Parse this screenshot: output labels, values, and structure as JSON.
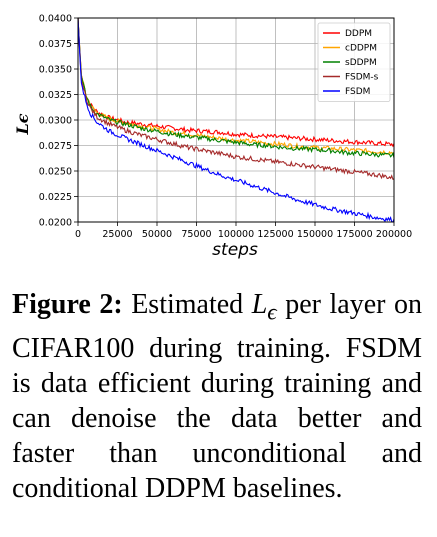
{
  "chart_data": {
    "type": "line",
    "xlabel": "steps",
    "ylabel": "Lϵ",
    "xlim": [
      0,
      200000
    ],
    "ylim": [
      0.02,
      0.04
    ],
    "xticks": [
      "0",
      "25000",
      "50000",
      "75000",
      "100000",
      "125000",
      "150000",
      "175000",
      "200000"
    ],
    "yticks": [
      "0.0200",
      "0.0225",
      "0.0250",
      "0.0275",
      "0.0300",
      "0.0325",
      "0.0350",
      "0.0375",
      "0.0400"
    ],
    "grid": true,
    "legend_position": "top-right",
    "series": [
      {
        "name": "DDPM",
        "color": "#ff0000",
        "x": [
          0,
          2000,
          5000,
          8000,
          12000,
          20000,
          30000,
          40000,
          50000,
          60000,
          70000,
          80000,
          90000,
          100000,
          110000,
          120000,
          130000,
          140000,
          150000,
          160000,
          170000,
          180000,
          190000,
          200000
        ],
        "y": [
          0.04,
          0.0345,
          0.0325,
          0.0315,
          0.0308,
          0.0302,
          0.0298,
          0.0296,
          0.0294,
          0.0292,
          0.029,
          0.0289,
          0.0288,
          0.0286,
          0.0285,
          0.0284,
          0.0283,
          0.0282,
          0.0281,
          0.028,
          0.0279,
          0.0278,
          0.0277,
          0.0276
        ]
      },
      {
        "name": "cDDPM",
        "color": "#ffa500",
        "x": [
          0,
          2000,
          5000,
          8000,
          12000,
          20000,
          30000,
          40000,
          50000,
          60000,
          70000,
          80000,
          90000,
          100000,
          110000,
          120000,
          130000,
          140000,
          150000,
          160000,
          170000,
          180000,
          190000,
          200000
        ],
        "y": [
          0.04,
          0.0345,
          0.0325,
          0.0314,
          0.0307,
          0.0301,
          0.0297,
          0.0294,
          0.0291,
          0.0288,
          0.0286,
          0.0284,
          0.0282,
          0.028,
          0.0279,
          0.0277,
          0.0276,
          0.0274,
          0.0273,
          0.0272,
          0.0271,
          0.027,
          0.0269,
          0.0268
        ]
      },
      {
        "name": "sDDPM",
        "color": "#008000",
        "x": [
          0,
          2000,
          5000,
          8000,
          12000,
          20000,
          30000,
          40000,
          50000,
          60000,
          70000,
          80000,
          90000,
          100000,
          110000,
          120000,
          130000,
          140000,
          150000,
          160000,
          170000,
          180000,
          190000,
          200000
        ],
        "y": [
          0.04,
          0.0344,
          0.0324,
          0.0313,
          0.0306,
          0.03,
          0.0296,
          0.0292,
          0.0289,
          0.0286,
          0.0284,
          0.0282,
          0.028,
          0.0278,
          0.0276,
          0.0275,
          0.0273,
          0.0272,
          0.0271,
          0.027,
          0.0268,
          0.0267,
          0.0266,
          0.0265
        ]
      },
      {
        "name": "FSDM-s",
        "color": "#a52a2a",
        "x": [
          0,
          2000,
          5000,
          8000,
          12000,
          20000,
          30000,
          40000,
          50000,
          60000,
          70000,
          80000,
          90000,
          100000,
          110000,
          120000,
          130000,
          140000,
          150000,
          160000,
          170000,
          180000,
          190000,
          200000
        ],
        "y": [
          0.04,
          0.034,
          0.0322,
          0.0311,
          0.0303,
          0.0296,
          0.029,
          0.0285,
          0.0281,
          0.0277,
          0.0273,
          0.027,
          0.0267,
          0.0264,
          0.0262,
          0.026,
          0.0258,
          0.0256,
          0.0254,
          0.0252,
          0.025,
          0.0248,
          0.0246,
          0.0243
        ]
      },
      {
        "name": "FSDM",
        "color": "#0000ff",
        "x": [
          0,
          2000,
          5000,
          8000,
          12000,
          20000,
          30000,
          40000,
          50000,
          60000,
          70000,
          80000,
          90000,
          100000,
          110000,
          120000,
          130000,
          140000,
          150000,
          160000,
          170000,
          180000,
          190000,
          200000
        ],
        "y": [
          0.04,
          0.0337,
          0.0318,
          0.0306,
          0.0298,
          0.0289,
          0.0282,
          0.0276,
          0.027,
          0.0264,
          0.0258,
          0.0252,
          0.0246,
          0.0241,
          0.0236,
          0.0231,
          0.0226,
          0.0221,
          0.0217,
          0.0213,
          0.021,
          0.0207,
          0.0204,
          0.0202
        ]
      }
    ]
  },
  "caption": {
    "label": "Figure 2:",
    "text_before": "Estimated",
    "symbol_main": "L",
    "symbol_sub": "ϵ",
    "text_after": "per layer on CIFAR100 during train­ing. FSDM is data efficient dur­ing training and can denoise the data better and faster than uncon­ditional and conditional DDPM baselines."
  }
}
